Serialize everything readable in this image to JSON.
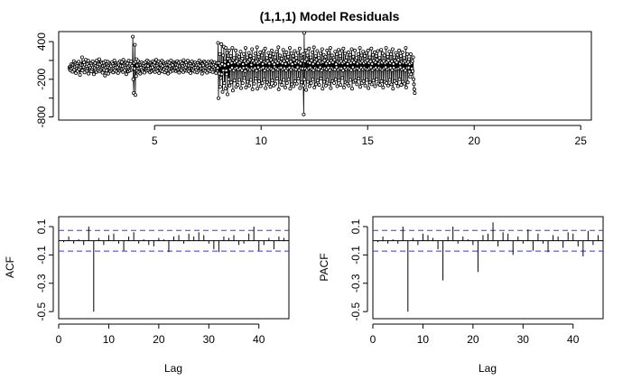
{
  "chart_data": [
    {
      "type": "line",
      "title": "(1,1,1) Model Residuals",
      "xlabel": "",
      "ylabel": "",
      "xlim": [
        0.5,
        25.5
      ],
      "ylim": [
        -850,
        560
      ],
      "x_ticks": [
        5,
        10,
        15,
        20,
        25
      ],
      "y_ticks": [
        -800,
        -200,
        400
      ],
      "markers": "open-circle",
      "series": [
        {
          "start": 1.0,
          "frequency": 52,
          "values": [
            -10,
            -40,
            5,
            -60,
            -20,
            40,
            -30,
            15,
            -80,
            30,
            -15,
            90,
            -50,
            20,
            -5,
            60,
            -100,
            35,
            -25,
            10,
            -70,
            55,
            -20,
            80,
            -40,
            5,
            -130,
            45,
            -10,
            25,
            -55,
            150,
            -60,
            20,
            -15,
            -5,
            70,
            -90,
            30,
            -45,
            110,
            -20,
            10,
            -65,
            40,
            -30,
            95,
            -110,
            15,
            -25,
            60,
            -40,
            -15,
            50,
            -75,
            20,
            -35,
            85,
            -10,
            45,
            -120,
            30,
            -20,
            60,
            -55,
            15,
            -85,
            100,
            -30,
            5,
            -60,
            40,
            -25,
            120,
            -70,
            35,
            -10,
            -45,
            75,
            -20,
            55,
            -95,
            10,
            -30,
            65,
            -50,
            20,
            -140,
            90,
            -15,
            30,
            -60,
            45,
            -5,
            80,
            -110,
            25,
            -35,
            50,
            -20,
            -70,
            35,
            10,
            -50,
            70,
            -25,
            40,
            -90,
            15,
            -30,
            100,
            -60,
            20,
            -15,
            55,
            -80,
            30,
            -10,
            45,
            -100,
            60,
            -40,
            25,
            -65,
            90,
            -20,
            15,
            -50,
            75,
            -35,
            10,
            -85,
            110,
            -25,
            40,
            -55,
            20,
            -15,
            65,
            -120,
            35,
            -30,
            50,
            -10,
            -75,
            95,
            -40,
            20,
            -60,
            45,
            -25,
            85,
            -45,
            15,
            -20,
            480,
            -200,
            -420,
            60,
            -30,
            350,
            -450,
            80,
            -150,
            120,
            -60,
            20,
            -30,
            90,
            -90,
            45,
            -25,
            60,
            -110,
            30,
            -15,
            70,
            -50,
            40,
            -80,
            25,
            -20,
            55,
            -95,
            10,
            -35,
            75,
            -40,
            20,
            -65,
            100,
            -25,
            15,
            -55,
            80,
            -30,
            45,
            -90,
            60,
            -20,
            35,
            -70,
            25,
            -10,
            90,
            -60,
            30,
            -40,
            65,
            -85,
            15,
            -25,
            110,
            -45,
            20,
            -70,
            50,
            -15,
            85,
            -100,
            40,
            -30,
            60,
            -55,
            25,
            -20,
            95,
            -75,
            10,
            -35,
            70,
            -40,
            45,
            -90,
            20,
            -15,
            55,
            -60,
            30,
            -25,
            80,
            -110,
            35,
            -45,
            65,
            -20,
            15,
            -80,
            100,
            -30,
            40,
            -50,
            25,
            -65,
            75,
            -10,
            -35,
            60,
            -20,
            45,
            -70,
            30,
            -15,
            90,
            -55,
            20,
            -40,
            65,
            -95,
            10,
            -25,
            80,
            -45,
            35,
            -60,
            50,
            -20,
            15,
            -85,
            105,
            -30,
            40,
            -55,
            25,
            -10,
            70,
            -65,
            30,
            -35,
            95,
            -50,
            20,
            -75,
            60,
            -25,
            45,
            -100,
            15,
            -30,
            85,
            -40,
            10,
            -60,
            55,
            -20,
            35,
            -80,
            70,
            -15,
            40,
            -50,
            25,
            -90,
            60,
            -20,
            30,
            -65,
            100,
            -35,
            15,
            -45,
            75,
            -25,
            50,
            -110,
            40,
            -30,
            20,
            -55,
            85,
            -15,
            65,
            -70,
            35,
            -20,
            45,
            -95,
            10,
            -40,
            80,
            -60,
            25,
            -15,
            55,
            -75,
            30,
            -35,
            90,
            -50,
            20,
            -85,
            65,
            -10,
            40,
            -45,
            70,
            -25,
            15,
            -100,
            50,
            -30,
            60,
            -20,
            380,
            -500,
            60,
            -110,
            200,
            -320,
            20,
            -180,
            360,
            -120,
            40,
            -400,
            180,
            -60,
            320,
            -260,
            20,
            80,
            -350,
            300,
            -60,
            -120,
            220,
            -440,
            130,
            40,
            -200,
            260,
            -300,
            90,
            -40,
            170,
            -250,
            60,
            -15,
            300,
            -380,
            110,
            -60,
            140,
            -220,
            70,
            -30,
            260,
            -320,
            90,
            -20,
            180,
            -290,
            50,
            -45,
            160,
            -210,
            70,
            -30,
            240,
            -340,
            100,
            -55,
            130,
            -260,
            40,
            -20,
            200,
            -180,
            90,
            -70,
            300,
            -330,
            60,
            -15,
            150,
            -240,
            80,
            -35,
            220,
            -300,
            110,
            -50,
            170,
            -210,
            30,
            -25,
            280,
            -360,
            95,
            -40,
            140,
            -270,
            65,
            -20,
            210,
            -190,
            85,
            -65,
            310,
            -350,
            55,
            -10,
            160,
            -230,
            75,
            -45,
            230,
            -310,
            100,
            -30,
            180,
            -260,
            45,
            -15,
            250,
            -200,
            80,
            -60,
            290,
            -340,
            65,
            -25,
            140,
            -250,
            90,
            -40,
            220,
            -280,
            50,
            -20,
            170,
            -320,
            110,
            -35,
            260,
            -220,
            70,
            -55,
            200,
            -300,
            40,
            -10,
            150,
            -270,
            85,
            -30,
            240,
            -190,
            60,
            -45,
            310,
            -360,
            95,
            -20,
            180,
            -240,
            75,
            -15,
            130,
            -290,
            55,
            -40,
            270,
            -210,
            90,
            -25,
            190,
            -330,
            45,
            -60,
            230,
            -260,
            100,
            -30,
            160,
            -200,
            65,
            -15,
            300,
            -350,
            80,
            -50,
            210,
            -280,
            40,
            -20,
            170,
            -310,
            110,
            -35,
            250,
            -230,
            60,
            -45,
            140,
            -270,
            85,
            -10,
            220,
            -190,
            70,
            -55,
            290,
            -340,
            50,
            -25,
            180,
            -250,
            95,
            -30,
            200,
            -300,
            -760,
            540,
            -200,
            90,
            -30,
            260,
            -370,
            120,
            -50,
            180,
            -240,
            70,
            -25,
            290,
            -310,
            60,
            -15,
            150,
            -260,
            100,
            -40,
            230,
            -200,
            45,
            -55,
            310,
            -330,
            80,
            -20,
            170,
            -280,
            110,
            -35,
            250,
            -220,
            55,
            -45,
            140,
            -290,
            90,
            -10,
            210,
            -190,
            65,
            -60,
            280,
            -350,
            75,
            -30,
            190,
            -240,
            100,
            -25,
            160,
            -300,
            50,
            -40,
            260,
            -210,
            85,
            -15,
            220,
            -270,
            60,
            -55,
            300,
            -340,
            95,
            -20,
            180,
            -230,
            70,
            -35,
            140,
            -260,
            110,
            -45,
            240,
            -200,
            40,
            -10,
            200,
            -310,
            80,
            -50,
            270,
            -220,
            65,
            -25,
            170,
            -290,
            90,
            -30,
            250,
            -180,
            55,
            -60,
            290,
            -330,
            75,
            -15,
            210,
            -250,
            100,
            -40,
            150,
            -270,
            45,
            -20,
            230,
            -300,
            85,
            -35,
            190,
            -210,
            60,
            -55,
            280,
            -350,
            95,
            -10,
            160,
            -240,
            70,
            -45,
            260,
            -220,
            110,
            -25,
            140,
            -280,
            50,
            -30,
            200,
            -190,
            80,
            -50,
            300,
            -320,
            65,
            -15,
            180,
            -260,
            90,
            -40,
            240,
            -230,
            55,
            -20,
            170,
            -300,
            75,
            -35,
            220,
            -210,
            100,
            -45,
            260,
            -340,
            60,
            -25,
            150,
            -250,
            85,
            -10,
            290,
            -280,
            45,
            -55,
            190,
            -220,
            95,
            -30,
            230,
            -310,
            70,
            -15,
            170,
            -200,
            110,
            -40,
            250,
            -270,
            50,
            -20,
            140,
            -290,
            80,
            -35,
            270,
            -230,
            65,
            -50,
            210,
            -330,
            90,
            -25,
            180,
            -240,
            55,
            -10,
            300,
            -260,
            75,
            -45,
            160,
            -300,
            100,
            -30,
            240,
            -210,
            60,
            -20,
            200,
            -280,
            85,
            -55,
            280,
            -350,
            45,
            -15,
            150,
            -230,
            95,
            -40,
            220,
            -260,
            70,
            -35,
            190,
            -310,
            110,
            -25,
            260,
            -200,
            50,
            -10,
            170,
            -290,
            80,
            -45,
            230,
            -240,
            65,
            -30,
            140,
            -270,
            90,
            -60,
            300,
            -330,
            55,
            -20,
            200,
            -250,
            75,
            -15,
            120,
            -80,
            40,
            -160,
            200,
            -120,
            60,
            -30,
            90,
            -70,
            150,
            -200,
            -280,
            -360,
            -420
          ]
        }
      ]
    },
    {
      "type": "bar",
      "xlabel": "Lag",
      "ylabel": "ACF",
      "xlim": [
        0,
        46
      ],
      "ylim": [
        -0.55,
        0.17
      ],
      "x_ticks": [
        0,
        10,
        20,
        30,
        40
      ],
      "y_ticks": [
        -0.5,
        -0.3,
        -0.1,
        0.1
      ],
      "ci": 0.073,
      "lags": [
        1,
        2,
        3,
        4,
        5,
        6,
        7,
        8,
        9,
        10,
        11,
        12,
        13,
        14,
        15,
        16,
        17,
        18,
        19,
        20,
        21,
        22,
        23,
        24,
        25,
        26,
        27,
        28,
        29,
        30,
        31,
        32,
        33,
        34,
        35,
        36,
        37,
        38,
        39,
        40,
        41,
        42,
        43,
        44,
        45
      ],
      "values": [
        -0.01,
        0.03,
        -0.02,
        0.01,
        -0.03,
        0.1,
        -0.5,
        0.02,
        -0.03,
        0.04,
        0.05,
        -0.02,
        -0.07,
        0.03,
        0.06,
        -0.02,
        0.01,
        -0.03,
        -0.04,
        0.02,
        0.01,
        -0.08,
        0.03,
        0.04,
        -0.02,
        0.05,
        0.03,
        0.06,
        0.04,
        -0.02,
        -0.06,
        -0.08,
        0.03,
        0.02,
        0.04,
        -0.03,
        -0.02,
        0.05,
        0.1,
        -0.07,
        -0.03,
        0.02,
        -0.06,
        0.03,
        0.02
      ]
    },
    {
      "type": "bar",
      "xlabel": "Lag",
      "ylabel": "PACF",
      "xlim": [
        0,
        46
      ],
      "ylim": [
        -0.55,
        0.17
      ],
      "x_ticks": [
        0,
        10,
        20,
        30,
        40
      ],
      "y_ticks": [
        -0.5,
        -0.3,
        -0.1,
        0.1
      ],
      "ci": 0.073,
      "lags": [
        1,
        2,
        3,
        4,
        5,
        6,
        7,
        8,
        9,
        10,
        11,
        12,
        13,
        14,
        15,
        16,
        17,
        18,
        19,
        20,
        21,
        22,
        23,
        24,
        25,
        26,
        27,
        28,
        29,
        30,
        31,
        32,
        33,
        34,
        35,
        36,
        37,
        38,
        39,
        40,
        41,
        42,
        43,
        44,
        45
      ],
      "values": [
        -0.01,
        0.03,
        -0.02,
        0.01,
        -0.02,
        0.1,
        -0.5,
        0.02,
        -0.03,
        0.05,
        0.04,
        0.02,
        -0.06,
        -0.28,
        0.03,
        0.1,
        -0.02,
        0.03,
        0.01,
        -0.03,
        -0.22,
        0.04,
        0.05,
        0.13,
        -0.04,
        0.06,
        0.05,
        -0.1,
        0.03,
        -0.02,
        0.08,
        -0.07,
        0.05,
        -0.02,
        -0.08,
        0.04,
        0.03,
        -0.05,
        0.06,
        0.05,
        -0.04,
        -0.11,
        0.07,
        -0.03,
        0.04
      ]
    }
  ]
}
